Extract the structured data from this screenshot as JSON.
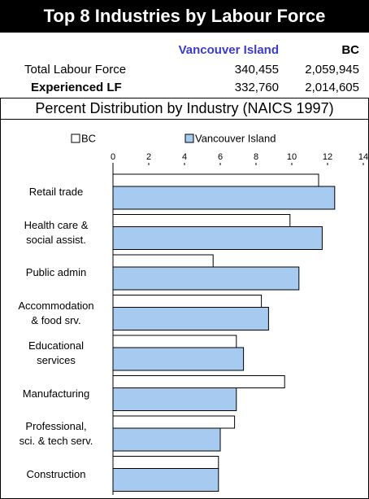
{
  "header": {
    "title": "Top 8 Industries by Labour Force"
  },
  "table": {
    "headers": [
      "Vancouver Island",
      "BC"
    ],
    "rows": [
      {
        "label": "Total Labour Force",
        "values": [
          "340,455",
          "2,059,945"
        ]
      },
      {
        "label": "Experienced LF",
        "values": [
          "332,760",
          "2,014,605"
        ]
      }
    ]
  },
  "chart_data": {
    "type": "bar",
    "orientation": "horizontal",
    "title": "Percent Distribution by Industry (NAICS 1997)",
    "categories": [
      "Retail trade",
      "Health care &\nsocial assist.",
      "Public admin",
      "Accommodation\n& food srv.",
      "Educational\nservices",
      "Manufacturing",
      "Professional,\nsci. & tech serv.",
      "Construction"
    ],
    "series": [
      {
        "name": "BC",
        "color": "#ffffff",
        "values": [
          11.5,
          9.9,
          5.6,
          8.3,
          6.9,
          9.6,
          6.8,
          5.9
        ]
      },
      {
        "name": "Vancouver Island",
        "color": "#a6caf0",
        "values": [
          12.4,
          11.7,
          10.4,
          8.7,
          7.3,
          6.9,
          6.0,
          5.9
        ]
      }
    ],
    "xlim": [
      0,
      14
    ],
    "xticks": [
      0,
      2,
      4,
      6,
      8,
      10,
      12,
      14
    ],
    "legend": "top"
  }
}
